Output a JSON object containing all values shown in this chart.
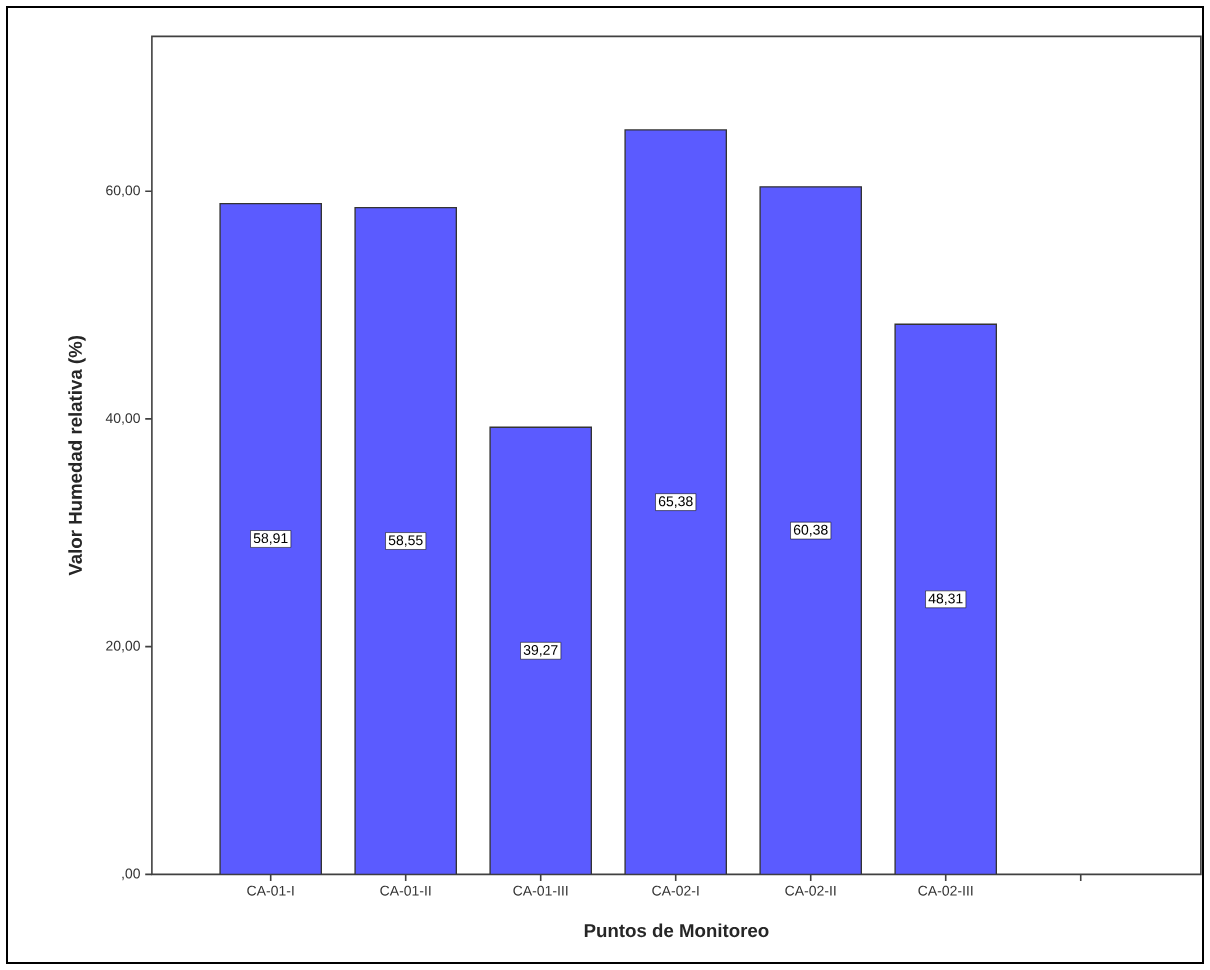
{
  "chart_data": {
    "type": "bar",
    "xlabel": "Puntos de Monitoreo",
    "ylabel": "Valor Humedad relativa (%)",
    "categories": [
      "CA-01-I",
      "CA-01-II",
      "CA-01-III",
      "CA-02-I",
      "CA-02-II",
      "CA-02-III",
      null
    ],
    "values": [
      58.91,
      58.55,
      39.27,
      65.38,
      60.38,
      48.31,
      null
    ],
    "value_labels": [
      "58,91",
      "58,55",
      "39,27",
      "65,38",
      "60,38",
      "48,31",
      null
    ],
    "color": "#5b5bff",
    "ylim": [
      0,
      73.6
    ],
    "yticks": [
      {
        "value": 0,
        "label": ",00"
      },
      {
        "value": 20,
        "label": "20,00"
      },
      {
        "value": 40,
        "label": "40,00"
      },
      {
        "value": 60,
        "label": "60,00"
      }
    ]
  }
}
